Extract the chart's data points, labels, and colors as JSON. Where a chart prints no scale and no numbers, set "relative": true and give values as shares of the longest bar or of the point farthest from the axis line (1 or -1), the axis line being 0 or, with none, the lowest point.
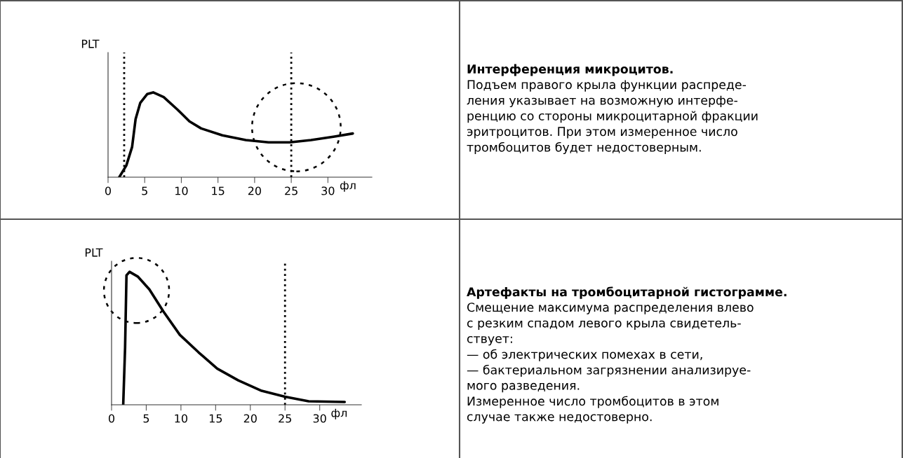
{
  "chart_data": [
    {
      "type": "line",
      "relative": true,
      "ylabel": "PLT",
      "xlabel": "фл",
      "xlim": [
        0,
        36
      ],
      "xticks": [
        0,
        5,
        10,
        15,
        20,
        25,
        30
      ],
      "grid": false,
      "legend": false,
      "marker": "none",
      "line_style": "solid",
      "tick_labels": "x",
      "x": [
        1.53,
        2.49,
        3.28,
        3.76,
        4.4,
        5.36,
        6.16,
        7.59,
        9.5,
        11.1,
        12.7,
        15.6,
        18.8,
        21.9,
        24.8,
        27.7,
        30.9,
        33.4
      ],
      "series": [
        {
          "color": "#000000",
          "values": [
            0,
            0.137,
            0.356,
            0.685,
            0.877,
            0.981,
            1,
            0.945,
            0.795,
            0.658,
            0.575,
            0.493,
            0.438,
            0.411,
            0.411,
            0.438,
            0.479,
            0.515
          ]
        }
      ],
      "ref_lines": [
        {
          "axis": "x",
          "value": 2.2,
          "color": "#000000",
          "line_style": "dotted"
        },
        {
          "axis": "x",
          "value": 25,
          "color": "#000000",
          "line_style": "dotted"
        }
      ]
    },
    {
      "type": "other",
      "title": "Интерференция микроцитов.",
      "annotations": [
        "Подъем правого крыла функции распреде-",
        "ления указывает на возможную интерфе-",
        "ренцию со стороны микроцитарной фракции",
        "эритроцитов. При этом измеренное число",
        "тромбоцитов будет недостоверным."
      ]
    },
    {
      "type": "line",
      "relative": true,
      "ylabel": "PLT",
      "xlabel": "фл",
      "xlim": [
        0,
        36
      ],
      "xticks": [
        0,
        5,
        10,
        15,
        20,
        25,
        30
      ],
      "grid": false,
      "legend": false,
      "marker": "none",
      "line_style": "solid",
      "tick_labels": "x",
      "x": [
        1.68,
        1.95,
        2.15,
        2.59,
        3.77,
        5.45,
        7.47,
        9.84,
        12.53,
        15.23,
        18.26,
        21.63,
        25.0,
        28.4,
        33.6
      ],
      "series": [
        {
          "color": "#000000",
          "values": [
            0,
            0.43,
            0.974,
            1,
            0.965,
            0.868,
            0.702,
            0.526,
            0.395,
            0.272,
            0.184,
            0.105,
            0.061,
            0.026,
            0.021
          ]
        }
      ],
      "ref_lines": [
        {
          "axis": "x",
          "value": 25,
          "color": "#000000",
          "line_style": "dotted"
        }
      ]
    },
    {
      "type": "other",
      "title": "Артефакты на тромбоцитарной гистограмме.",
      "annotations": [
        "Смещение максимума распределения влево",
        "с резким спадом левого крыла свидетель-",
        "ствует:",
        "— об электрических помехах в сети,",
        "— бактериальном загрязнении анализируе-",
        "мого разведения.",
        "Измеренное число тромбоцитов в этом",
        "случае также недостоверно."
      ]
    }
  ]
}
